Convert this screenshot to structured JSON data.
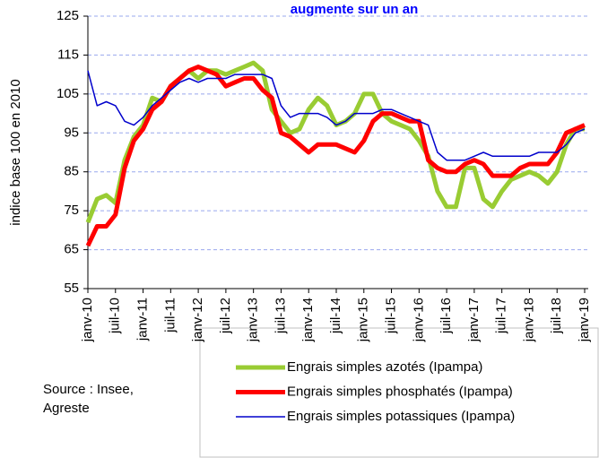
{
  "chart_data": {
    "type": "line",
    "title": "augmente sur un an",
    "y_label": "indice base 100 en 2010",
    "source": [
      "Source : Insee,",
      "Agreste"
    ],
    "categories": [
      "janv-10",
      null,
      null,
      "juil-10",
      null,
      null,
      "janv-11",
      null,
      null,
      "juil-11",
      null,
      null,
      "janv-12",
      null,
      null,
      "juil-12",
      null,
      null,
      "janv-13",
      null,
      null,
      "juil-13",
      null,
      null,
      "janv-14",
      null,
      null,
      "juil-14",
      null,
      null,
      "janv-15",
      null,
      null,
      "juil-15",
      null,
      null,
      "janv-16",
      null,
      null,
      "juil-16",
      null,
      null,
      "janv-17",
      null,
      null,
      "juil-17",
      null,
      null,
      "janv-18",
      null,
      null,
      "juil-18",
      null,
      null,
      "janv-19"
    ],
    "series": [
      {
        "name": "Engrais simples azotés (Ipampa)",
        "color": "#99cc33",
        "width": 5,
        "values": [
          72,
          78,
          79,
          77,
          88,
          94,
          97,
          104,
          103,
          107,
          109,
          111,
          109,
          111,
          111,
          110,
          111,
          112,
          113,
          111,
          101,
          98,
          95,
          96,
          101,
          104,
          102,
          97,
          98,
          100,
          105,
          105,
          100,
          98,
          97,
          96,
          93,
          89,
          80,
          76,
          76,
          86,
          86,
          78,
          76,
          80,
          83,
          84,
          85,
          84,
          82,
          85,
          92,
          96,
          96
        ]
      },
      {
        "name": "Engrais simples phosphatés (Ipampa)",
        "color": "#ff0000",
        "width": 5,
        "values": [
          66,
          71,
          71,
          74,
          86,
          93,
          96,
          101,
          103,
          107,
          109,
          111,
          112,
          111,
          110,
          107,
          108,
          109,
          109,
          106,
          104,
          95,
          94,
          92,
          90,
          92,
          92,
          92,
          91,
          90,
          93,
          98,
          100,
          100,
          99,
          98,
          98,
          88,
          86,
          85,
          85,
          87,
          88,
          87,
          84,
          84,
          84,
          86,
          87,
          87,
          87,
          90,
          95,
          96,
          97
        ]
      },
      {
        "name": "Engrais simples potassiques (Ipampa)",
        "color": "#0000cc",
        "width": 1.5,
        "values": [
          111,
          102,
          103,
          102,
          98,
          97,
          99,
          102,
          104,
          106,
          108,
          109,
          108,
          109,
          109,
          109,
          110,
          110,
          110,
          110,
          109,
          102,
          99,
          100,
          100,
          100,
          99,
          97,
          98,
          100,
          100,
          100,
          101,
          101,
          100,
          99,
          98,
          97,
          90,
          88,
          88,
          88,
          89,
          90,
          89,
          89,
          89,
          89,
          89,
          90,
          90,
          90,
          92,
          95,
          96
        ]
      }
    ],
    "ylim": [
      55,
      125
    ],
    "yticks": [
      55,
      65,
      75,
      85,
      95,
      105,
      115,
      125
    ],
    "grid": true
  }
}
